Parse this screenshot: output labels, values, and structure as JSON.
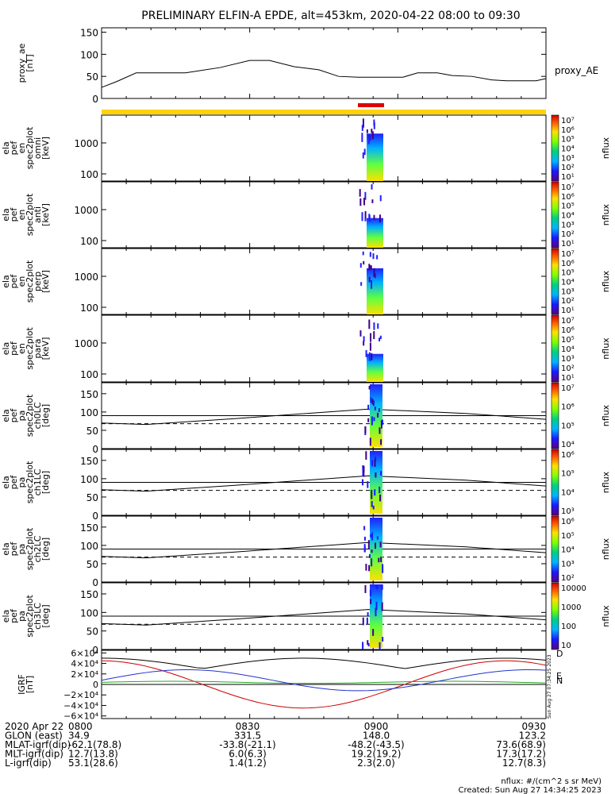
{
  "title": "PRELIMINARY ELFIN-A EPDE, alt=453km, 2020-04-22 08:00 to 09:30",
  "time_range": {
    "start": "08:00",
    "end": "09:30"
  },
  "colors": {
    "status_bar": "#ffd400",
    "science_bar": "#e00000"
  },
  "chart_data": [
    {
      "type": "line",
      "id": "proxy_ae",
      "ylabel": [
        "proxy_ae",
        "[nT]"
      ],
      "legend": "proxy_AE",
      "yticks": [
        "150",
        "100",
        "50",
        "0"
      ],
      "ylim": [
        0,
        160
      ],
      "x": [
        "08:00",
        "08:03",
        "08:07",
        "08:12",
        "08:17",
        "08:24",
        "08:30",
        "08:34",
        "08:39",
        "08:44",
        "08:48",
        "08:52",
        "08:55",
        "08:58",
        "09:01",
        "09:04",
        "09:08",
        "09:11",
        "09:15",
        "09:19",
        "09:22",
        "09:25",
        "09:28",
        "09:30"
      ],
      "values": [
        25,
        38,
        58,
        58,
        58,
        70,
        86,
        86,
        72,
        65,
        50,
        48,
        48,
        48,
        48,
        58,
        58,
        52,
        50,
        42,
        40,
        40,
        40,
        45
      ]
    },
    {
      "type": "heatmap",
      "id": "omni",
      "ylabel": [
        "ela",
        "pef",
        "en",
        "spec2plot",
        "omni",
        "[keV]"
      ],
      "yticks": [
        "1000",
        "100"
      ],
      "yscale": "log",
      "colorbar": {
        "label": "nflux",
        "ticks": [
          "10⁷",
          "10⁶",
          "10⁵",
          "10⁴",
          "10³",
          "10²",
          "10¹"
        ]
      }
    },
    {
      "type": "heatmap",
      "id": "anti",
      "ylabel": [
        "ela",
        "pef",
        "en",
        "spec2plot",
        "anti",
        "[keV]"
      ],
      "yticks": [
        "1000",
        "100"
      ],
      "yscale": "log",
      "colorbar": {
        "label": "nflux",
        "ticks": [
          "10⁷",
          "10⁶",
          "10⁵",
          "10⁴",
          "10³",
          "10²",
          "10¹"
        ]
      }
    },
    {
      "type": "heatmap",
      "id": "perp",
      "ylabel": [
        "ela",
        "pef",
        "en",
        "spec2plot",
        "perp",
        "[keV]"
      ],
      "yticks": [
        "1000",
        "100"
      ],
      "yscale": "log",
      "colorbar": {
        "label": "nflux",
        "ticks": [
          "10⁷",
          "10⁶",
          "10⁵",
          "10⁴",
          "10³",
          "10²",
          "10¹"
        ]
      }
    },
    {
      "type": "heatmap",
      "id": "para",
      "ylabel": [
        "ela",
        "pef",
        "en",
        "spec2plot",
        "para",
        "[keV]"
      ],
      "yticks": [
        "1000",
        "100"
      ],
      "yscale": "log",
      "colorbar": {
        "label": "nflux",
        "ticks": [
          "10⁷",
          "10⁶",
          "10⁵",
          "10⁴",
          "10³",
          "10²",
          "10¹"
        ]
      }
    },
    {
      "type": "heatmap",
      "id": "ch0LC",
      "ylabel": [
        "ela",
        "pef",
        "pa",
        "spec2plot",
        "ch0LC",
        "[deg]"
      ],
      "yticks": [
        "150",
        "100",
        "50",
        "0"
      ],
      "ylim": [
        0,
        180
      ],
      "colorbar": {
        "label": "nflux",
        "ticks": [
          "10⁷",
          "10⁶",
          "10⁵",
          "10⁴"
        ]
      }
    },
    {
      "type": "heatmap",
      "id": "ch1LC",
      "ylabel": [
        "ela",
        "pef",
        "pa",
        "spec2plot",
        "ch1LC",
        "[deg]"
      ],
      "yticks": [
        "150",
        "100",
        "50",
        "0"
      ],
      "ylim": [
        0,
        180
      ],
      "colorbar": {
        "label": "nflux",
        "ticks": [
          "10⁶",
          "10⁵",
          "10⁴",
          "10³"
        ]
      }
    },
    {
      "type": "heatmap",
      "id": "ch2LC",
      "ylabel": [
        "ela",
        "pef",
        "pa",
        "spec2plot",
        "ch2LC",
        "[deg]"
      ],
      "yticks": [
        "150",
        "100",
        "50",
        "0"
      ],
      "ylim": [
        0,
        180
      ],
      "colorbar": {
        "label": "nflux",
        "ticks": [
          "10⁶",
          "10⁵",
          "10⁴",
          "10³",
          "10²"
        ]
      }
    },
    {
      "type": "heatmap",
      "id": "ch3LC",
      "ylabel": [
        "ela",
        "pef",
        "pa",
        "spec2plot",
        "ch3LC",
        "[deg]"
      ],
      "yticks": [
        "150",
        "100",
        "50",
        "0"
      ],
      "ylim": [
        0,
        180
      ],
      "colorbar": {
        "label": "nflux",
        "ticks": [
          "10000",
          "1000",
          "100",
          "10"
        ]
      }
    },
    {
      "type": "line",
      "id": "igrf",
      "ylabel": [
        "IGRF",
        "[nT]"
      ],
      "yticks": [
        "6×10⁴",
        "4×10⁴",
        "2×10⁴",
        "0",
        "−2×10⁴",
        "−4×10⁴",
        "−6×10⁴"
      ],
      "ylim": [
        -65000,
        65000
      ],
      "legend": [
        "D",
        "E",
        "N"
      ],
      "series_colors": [
        "#cc0000",
        "#22aa22",
        "#2233cc",
        "#000000"
      ]
    }
  ],
  "x_axis": {
    "ticks": [
      "0800",
      "0830",
      "0900",
      "0930"
    ],
    "rows": [
      {
        "label": "2020 Apr 22",
        "values": [
          "0800",
          "0830",
          "0900",
          "0930"
        ]
      },
      {
        "label": "GLON (east)",
        "values": [
          "34.9",
          "331.5",
          "148.0",
          "123.2"
        ]
      },
      {
        "label": "MLAT-igrf(dip)",
        "values": [
          "-62.1(78.8)",
          "-33.8(-21.1)",
          "-48.2(-43.5)",
          "73.6(68.9)"
        ]
      },
      {
        "label": "MLT-igrf(dip)",
        "values": [
          "12.7(13.8)",
          "6.0(6.3)",
          "19.2(19.2)",
          "17.3(17.2)"
        ]
      },
      {
        "label": "L-igrf(dip)",
        "values": [
          "53.1(28.6)",
          "1.4(1.2)",
          "2.3(2.0)",
          "12.7(8.3)"
        ]
      }
    ]
  },
  "footer": {
    "units": "nflux: #/(cm^2 s sr MeV)",
    "created": "Created: Sun Aug 27 14:34:25 2023",
    "side_stamp": "Sun Aug 27 07:34:25 2023"
  }
}
